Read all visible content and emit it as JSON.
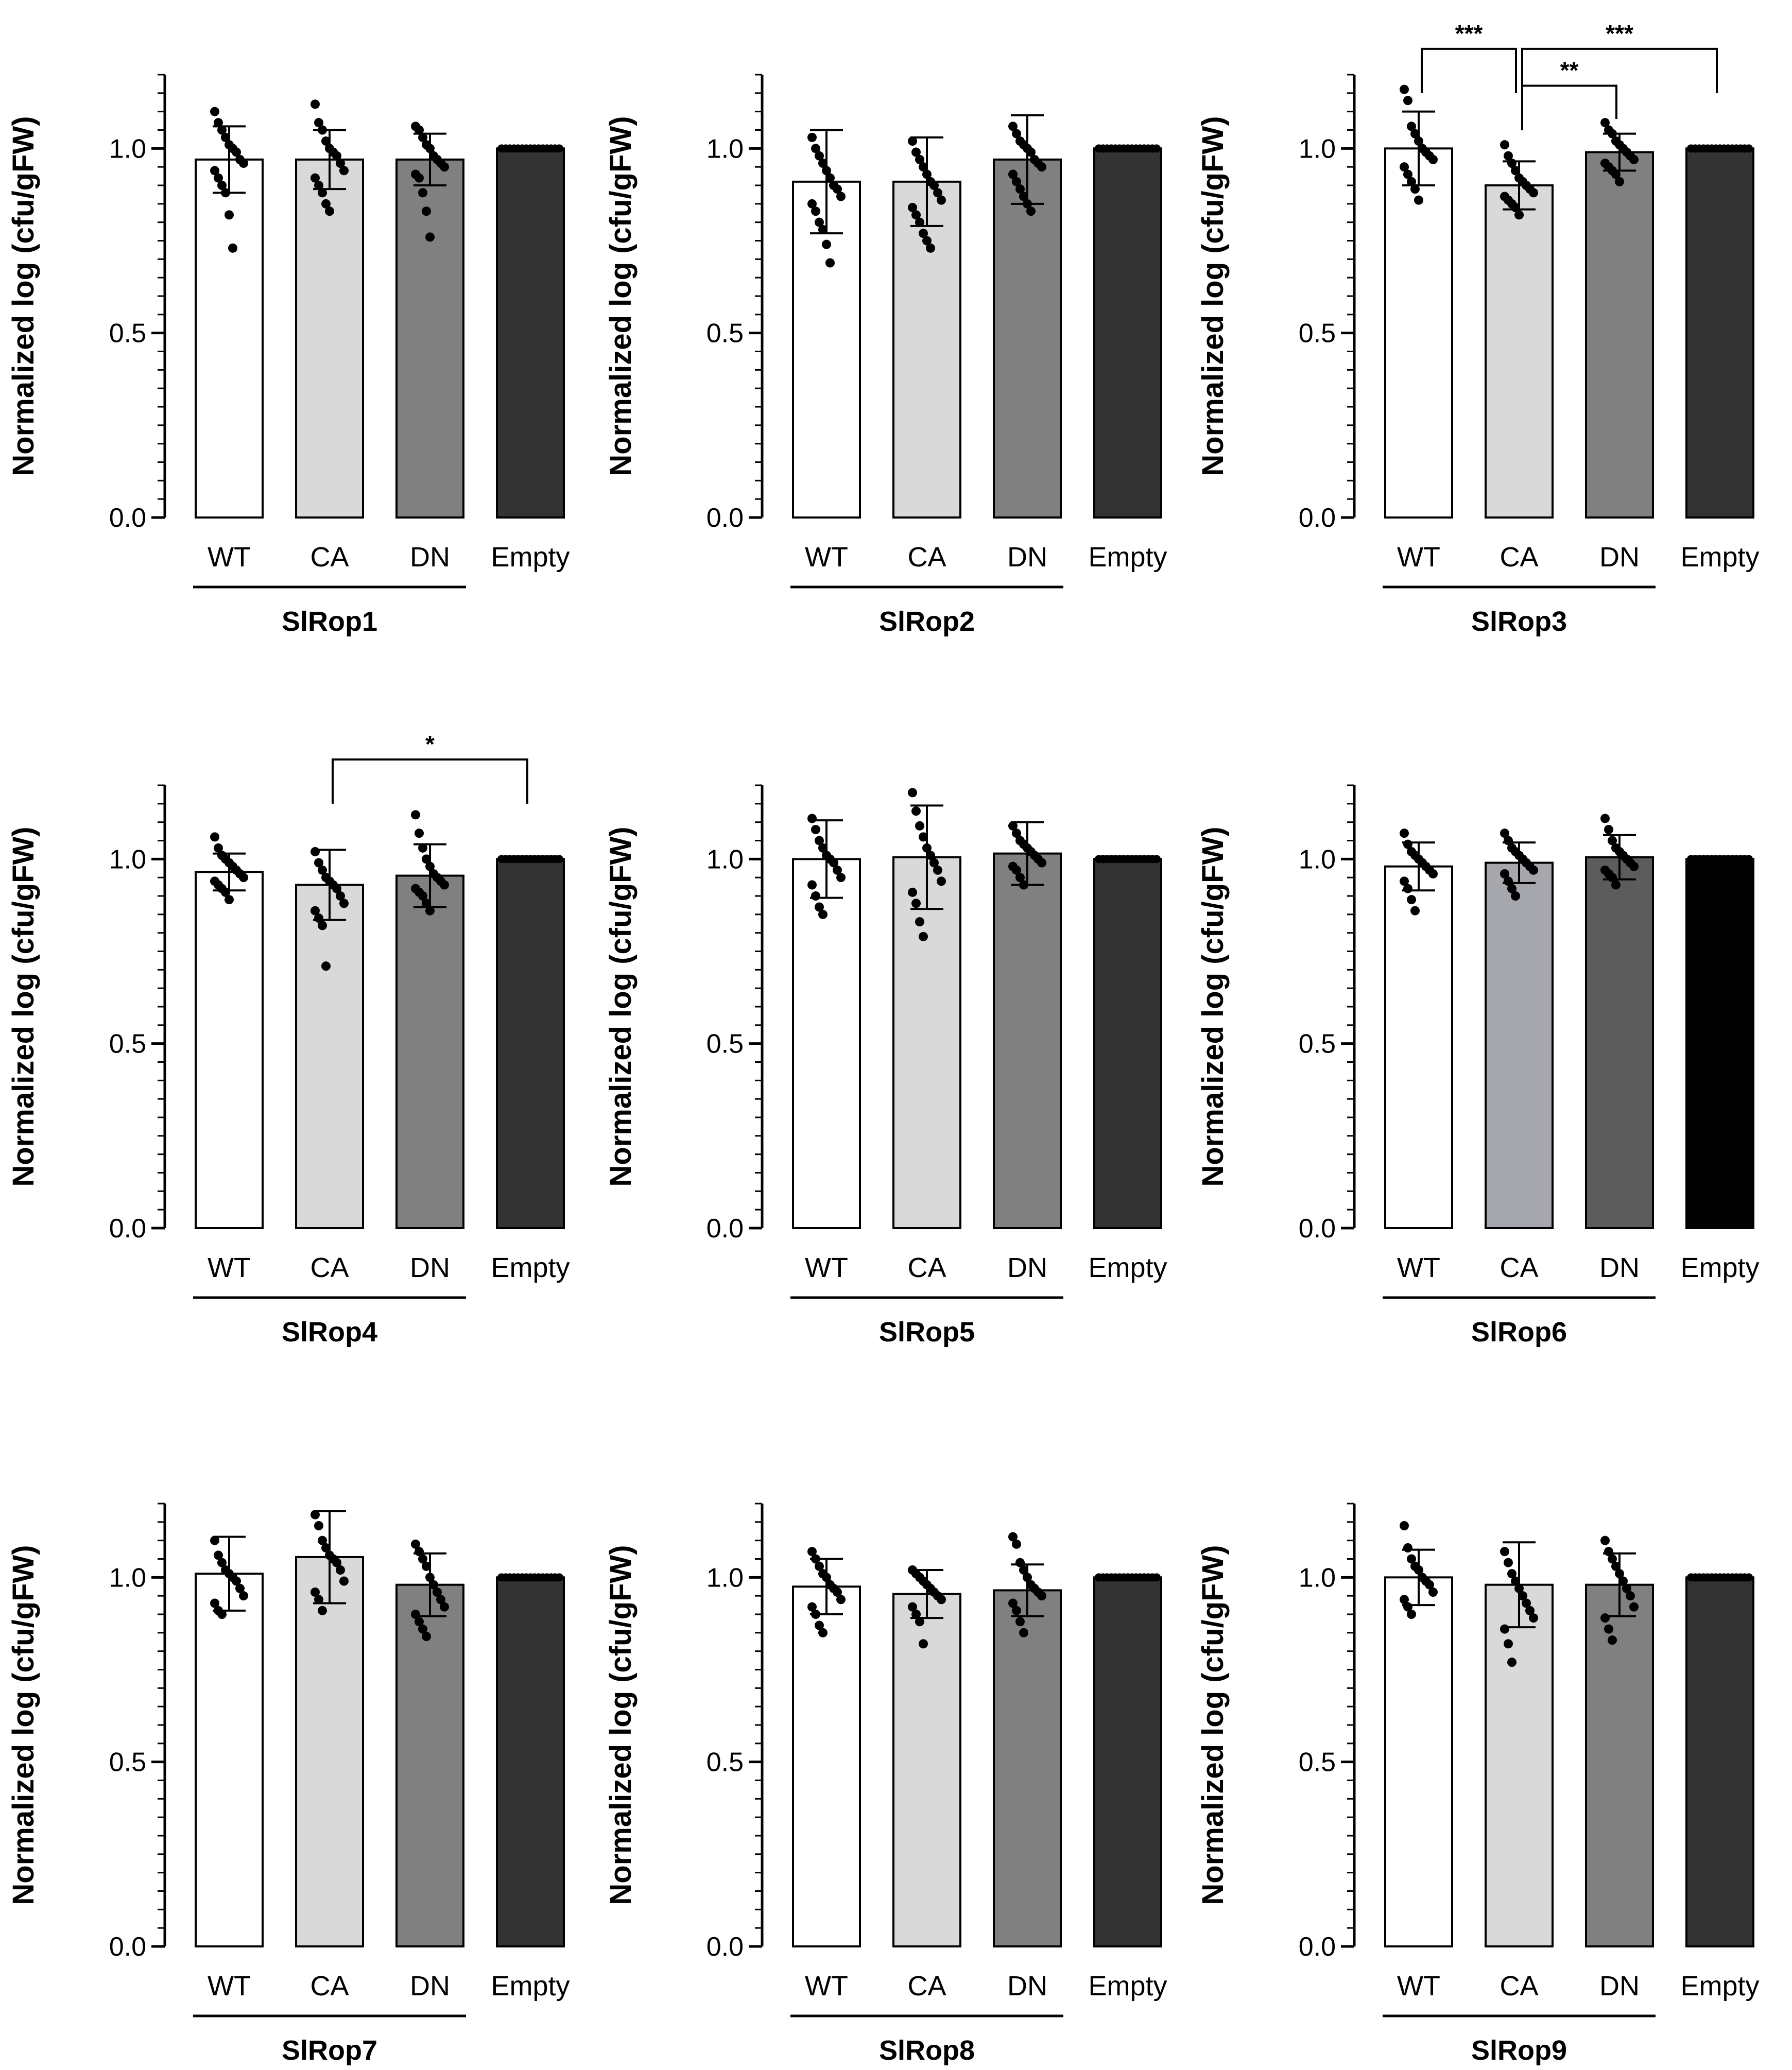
{
  "chart_data": [
    {
      "type": "bar",
      "group_label": "SlRop1",
      "ylabel": "Normalized log (cfu/gFW)",
      "ylim": [
        0,
        1.2
      ],
      "yticks": [
        "0.0",
        "0.5",
        "1.0"
      ],
      "categories": [
        "WT",
        "CA",
        "DN",
        "Empty"
      ],
      "values": [
        0.97,
        0.97,
        0.97,
        1.0
      ],
      "errors": [
        0.09,
        0.08,
        0.07,
        0.0
      ],
      "colors": [
        "#ffffff",
        "#d9d9d9",
        "#808080",
        "#333333"
      ],
      "points": [
        [
          1.1,
          1.07,
          1.05,
          1.03,
          1.01,
          1.0,
          0.99,
          0.97,
          0.96,
          0.94,
          0.92,
          0.9,
          0.88,
          0.82,
          0.73
        ],
        [
          1.12,
          1.07,
          1.05,
          1.02,
          1.0,
          0.99,
          0.98,
          0.96,
          0.94,
          0.92,
          0.9,
          0.88,
          0.85,
          0.83
        ],
        [
          1.06,
          1.05,
          1.03,
          1.01,
          1.0,
          0.98,
          0.97,
          0.96,
          0.95,
          0.93,
          0.92,
          0.88,
          0.83,
          0.76
        ],
        []
      ],
      "significance": []
    },
    {
      "type": "bar",
      "group_label": "SlRop2",
      "ylabel": "Normalized log (cfu/gFW)",
      "ylim": [
        0,
        1.2
      ],
      "yticks": [
        "0.0",
        "0.5",
        "1.0"
      ],
      "categories": [
        "WT",
        "CA",
        "DN",
        "Empty"
      ],
      "values": [
        0.91,
        0.91,
        0.97,
        1.0
      ],
      "errors": [
        0.14,
        0.12,
        0.12,
        0.0
      ],
      "colors": [
        "#ffffff",
        "#d9d9d9",
        "#808080",
        "#333333"
      ],
      "points": [
        [
          1.03,
          1.0,
          0.98,
          0.96,
          0.94,
          0.92,
          0.9,
          0.89,
          0.87,
          0.85,
          0.83,
          0.8,
          0.78,
          0.74,
          0.69
        ],
        [
          1.02,
          0.99,
          0.97,
          0.95,
          0.93,
          0.91,
          0.9,
          0.88,
          0.86,
          0.84,
          0.82,
          0.8,
          0.77,
          0.75,
          0.73
        ],
        [
          1.06,
          1.04,
          1.02,
          1.01,
          1.0,
          0.99,
          0.97,
          0.96,
          0.95,
          0.93,
          0.91,
          0.89,
          0.87,
          0.85,
          0.83
        ],
        []
      ],
      "significance": []
    },
    {
      "type": "bar",
      "group_label": "SlRop3",
      "ylabel": "Normalized log (cfu/gFW)",
      "ylim": [
        0,
        1.2
      ],
      "yticks": [
        "0.0",
        "0.5",
        "1.0"
      ],
      "categories": [
        "WT",
        "CA",
        "DN",
        "Empty"
      ],
      "values": [
        1.0,
        0.9,
        0.99,
        1.0
      ],
      "errors": [
        0.1,
        0.065,
        0.05,
        0.0
      ],
      "colors": [
        "#ffffff",
        "#d9d9d9",
        "#808080",
        "#333333"
      ],
      "points": [
        [
          1.16,
          1.13,
          1.06,
          1.04,
          1.02,
          1.0,
          0.99,
          0.98,
          0.97,
          0.95,
          0.93,
          0.91,
          0.89,
          0.86
        ],
        [
          1.01,
          0.98,
          0.96,
          0.94,
          0.92,
          0.91,
          0.9,
          0.89,
          0.88,
          0.87,
          0.86,
          0.85,
          0.84,
          0.82
        ],
        [
          1.07,
          1.05,
          1.04,
          1.02,
          1.01,
          1.0,
          0.99,
          0.98,
          0.97,
          0.96,
          0.95,
          0.94,
          0.93,
          0.91
        ],
        []
      ],
      "significance": [
        {
          "from": 0,
          "to": 1,
          "label": "***"
        },
        {
          "from": 1,
          "to": 3,
          "label": "***"
        },
        {
          "from": 1,
          "to": 2,
          "label": "**"
        }
      ]
    },
    {
      "type": "bar",
      "group_label": "SlRop4",
      "ylabel": "Normalized log (cfu/gFW)",
      "ylim": [
        0,
        1.2
      ],
      "yticks": [
        "0.0",
        "0.5",
        "1.0"
      ],
      "categories": [
        "WT",
        "CA",
        "DN",
        "Empty"
      ],
      "values": [
        0.965,
        0.93,
        0.955,
        1.0
      ],
      "errors": [
        0.05,
        0.095,
        0.085,
        0.0
      ],
      "colors": [
        "#ffffff",
        "#d9d9d9",
        "#808080",
        "#333333"
      ],
      "points": [
        [
          1.06,
          1.03,
          1.01,
          1.0,
          0.99,
          0.98,
          0.97,
          0.96,
          0.95,
          0.94,
          0.93,
          0.92,
          0.91,
          0.89
        ],
        [
          1.02,
          0.99,
          0.97,
          0.95,
          0.94,
          0.93,
          0.92,
          0.9,
          0.88,
          0.86,
          0.84,
          0.82,
          0.71
        ],
        [
          1.12,
          1.07,
          1.03,
          1.0,
          0.98,
          0.96,
          0.95,
          0.94,
          0.93,
          0.92,
          0.91,
          0.9,
          0.88,
          0.86
        ],
        []
      ],
      "significance": [
        {
          "from": 1,
          "to": 3,
          "label": "*"
        }
      ]
    },
    {
      "type": "bar",
      "group_label": "SlRop5",
      "ylabel": "Normalized log (cfu/gFW)",
      "ylim": [
        0,
        1.2
      ],
      "yticks": [
        "0.0",
        "0.5",
        "1.0"
      ],
      "categories": [
        "WT",
        "CA",
        "DN",
        "Empty"
      ],
      "values": [
        1.0,
        1.005,
        1.015,
        1.0
      ],
      "errors": [
        0.105,
        0.14,
        0.085,
        0.0
      ],
      "colors": [
        "#ffffff",
        "#d9d9d9",
        "#808080",
        "#333333"
      ],
      "points": [
        [
          1.11,
          1.08,
          1.05,
          1.03,
          1.01,
          1.0,
          0.99,
          0.97,
          0.95,
          0.93,
          0.9,
          0.87,
          0.85
        ],
        [
          1.18,
          1.13,
          1.09,
          1.06,
          1.03,
          1.01,
          0.99,
          0.97,
          0.94,
          0.91,
          0.88,
          0.83,
          0.79
        ],
        [
          1.09,
          1.07,
          1.05,
          1.04,
          1.03,
          1.02,
          1.01,
          1.0,
          0.99,
          0.98,
          0.97,
          0.95,
          0.93
        ],
        []
      ],
      "significance": []
    },
    {
      "type": "bar",
      "group_label": "SlRop6",
      "ylabel": "Normalized log (cfu/gFW)",
      "ylim": [
        0,
        1.2
      ],
      "yticks": [
        "0.0",
        "0.5",
        "1.0"
      ],
      "categories": [
        "WT",
        "CA",
        "DN",
        "Empty"
      ],
      "values": [
        0.98,
        0.99,
        1.005,
        1.0
      ],
      "errors": [
        0.065,
        0.055,
        0.06,
        0.0
      ],
      "colors": [
        "#ffffff",
        "#a6a6ad",
        "#5c5c5c",
        "#000000"
      ],
      "points": [
        [
          1.07,
          1.04,
          1.02,
          1.01,
          1.0,
          0.99,
          0.98,
          0.97,
          0.96,
          0.94,
          0.92,
          0.89,
          0.86
        ],
        [
          1.07,
          1.05,
          1.03,
          1.02,
          1.01,
          1.0,
          0.99,
          0.98,
          0.97,
          0.96,
          0.94,
          0.92,
          0.9
        ],
        [
          1.11,
          1.08,
          1.05,
          1.03,
          1.02,
          1.01,
          1.0,
          0.99,
          0.98,
          0.97,
          0.96,
          0.95,
          0.93
        ],
        []
      ],
      "significance": []
    },
    {
      "type": "bar",
      "group_label": "SlRop7",
      "ylabel": "Normalized log (cfu/gFW)",
      "ylim": [
        0,
        1.2
      ],
      "yticks": [
        "0.0",
        "0.5",
        "1.0"
      ],
      "categories": [
        "WT",
        "CA",
        "DN",
        "Empty"
      ],
      "values": [
        1.01,
        1.055,
        0.98,
        1.0
      ],
      "errors": [
        0.1,
        0.125,
        0.085,
        0.0
      ],
      "colors": [
        "#ffffff",
        "#d9d9d9",
        "#808080",
        "#333333"
      ],
      "points": [
        [
          1.1,
          1.06,
          1.04,
          1.02,
          1.01,
          1.0,
          0.99,
          0.97,
          0.95,
          0.93,
          0.91,
          0.9
        ],
        [
          1.17,
          1.14,
          1.1,
          1.08,
          1.06,
          1.05,
          1.04,
          1.02,
          0.99,
          0.96,
          0.94,
          0.91
        ],
        [
          1.09,
          1.07,
          1.05,
          1.03,
          1.0,
          0.98,
          0.96,
          0.94,
          0.92,
          0.9,
          0.88,
          0.86,
          0.84
        ],
        []
      ],
      "significance": []
    },
    {
      "type": "bar",
      "group_label": "SlRop8",
      "ylabel": "Normalized log (cfu/gFW)",
      "ylim": [
        0,
        1.2
      ],
      "yticks": [
        "0.0",
        "0.5",
        "1.0"
      ],
      "categories": [
        "WT",
        "CA",
        "DN",
        "Empty"
      ],
      "values": [
        0.975,
        0.955,
        0.965,
        1.0
      ],
      "errors": [
        0.075,
        0.065,
        0.07,
        0.0
      ],
      "colors": [
        "#ffffff",
        "#d9d9d9",
        "#808080",
        "#333333"
      ],
      "points": [
        [
          1.07,
          1.05,
          1.03,
          1.01,
          1.0,
          0.98,
          0.97,
          0.96,
          0.94,
          0.92,
          0.9,
          0.87,
          0.85
        ],
        [
          1.02,
          1.01,
          1.0,
          0.99,
          0.98,
          0.97,
          0.96,
          0.95,
          0.94,
          0.92,
          0.9,
          0.88,
          0.82
        ],
        [
          1.11,
          1.09,
          1.04,
          1.02,
          1.0,
          0.98,
          0.97,
          0.96,
          0.95,
          0.93,
          0.91,
          0.88,
          0.85
        ],
        []
      ],
      "significance": []
    },
    {
      "type": "bar",
      "group_label": "SlRop9",
      "ylabel": "Normalized log (cfu/gFW)",
      "ylim": [
        0,
        1.2
      ],
      "yticks": [
        "0.0",
        "0.5",
        "1.0"
      ],
      "categories": [
        "WT",
        "CA",
        "DN",
        "Empty"
      ],
      "values": [
        1.0,
        0.98,
        0.98,
        1.0
      ],
      "errors": [
        0.075,
        0.115,
        0.085,
        0.0
      ],
      "colors": [
        "#ffffff",
        "#d9d9d9",
        "#808080",
        "#333333"
      ],
      "points": [
        [
          1.14,
          1.08,
          1.05,
          1.03,
          1.02,
          1.0,
          0.99,
          0.98,
          0.96,
          0.94,
          0.92,
          0.9
        ],
        [
          1.07,
          1.04,
          1.01,
          0.99,
          0.97,
          0.95,
          0.93,
          0.91,
          0.89,
          0.86,
          0.82,
          0.77
        ],
        [
          1.1,
          1.07,
          1.05,
          1.03,
          1.01,
          0.99,
          0.97,
          0.95,
          0.92,
          0.89,
          0.86,
          0.83
        ],
        []
      ],
      "significance": []
    }
  ]
}
